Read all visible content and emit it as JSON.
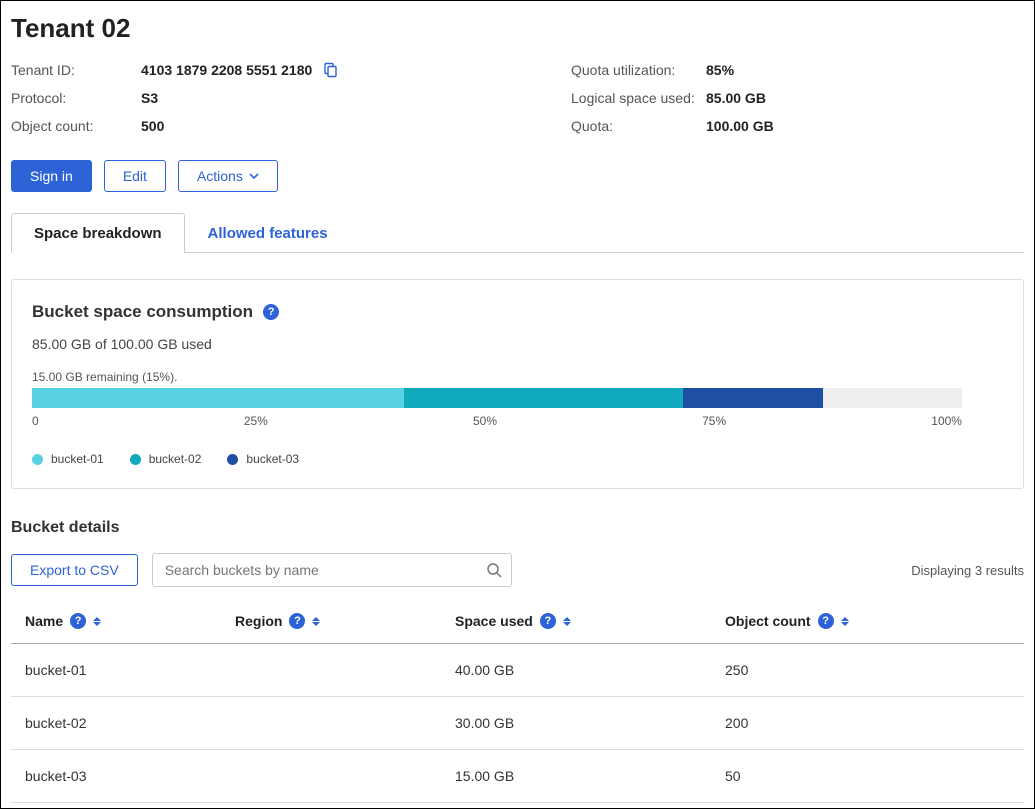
{
  "title": "Tenant 02",
  "meta_left": [
    {
      "label": "Tenant ID:",
      "value": "4103 1879 2208 5551 2180",
      "copyable": true
    },
    {
      "label": "Protocol:",
      "value": "S3"
    },
    {
      "label": "Object count:",
      "value": "500"
    }
  ],
  "meta_right": [
    {
      "label": "Quota utilization:",
      "value": "85%"
    },
    {
      "label": "Logical space used:",
      "value": "85.00 GB"
    },
    {
      "label": "Quota:",
      "value": "100.00 GB"
    }
  ],
  "buttons": {
    "signin": "Sign in",
    "edit": "Edit",
    "actions": "Actions"
  },
  "tabs": {
    "active": "Space breakdown",
    "inactive": "Allowed features"
  },
  "panel": {
    "title": "Bucket space consumption",
    "usage": "85.00 GB of 100.00 GB used",
    "remaining": "15.00 GB remaining (15%).",
    "ticks": [
      "0",
      "25%",
      "50%",
      "75%",
      "100%"
    ],
    "bar_background": "#edeeef",
    "segments": [
      {
        "name": "bucket-01",
        "pct": 40,
        "color": "#5ad1e3"
      },
      {
        "name": "bucket-02",
        "pct": 30,
        "color": "#11aabc"
      },
      {
        "name": "bucket-03",
        "pct": 15,
        "color": "#1e4fa3"
      }
    ],
    "legend_dot_colors": {
      "bucket-01": "#5ad1e3",
      "bucket-02": "#11aabc",
      "bucket-03": "#1e4fa3"
    }
  },
  "details": {
    "title": "Bucket details",
    "export": "Export to CSV",
    "search_placeholder": "Search buckets by name",
    "results": "Displaying 3 results",
    "columns": [
      {
        "label": "Name",
        "help": true
      },
      {
        "label": "Region",
        "help": true
      },
      {
        "label": "Space used",
        "help": true
      },
      {
        "label": "Object count",
        "help": true
      }
    ],
    "rows": [
      {
        "name": "bucket-01",
        "region": "",
        "space": "40.00 GB",
        "count": "250"
      },
      {
        "name": "bucket-02",
        "region": "",
        "space": "30.00 GB",
        "count": "200"
      },
      {
        "name": "bucket-03",
        "region": "",
        "space": "15.00 GB",
        "count": "50"
      }
    ]
  },
  "colors": {
    "primary": "#2d63d6"
  }
}
